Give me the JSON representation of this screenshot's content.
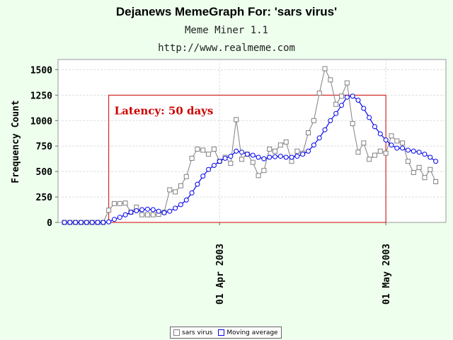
{
  "header": {
    "title": "Dejanews MemeGraph For: 'sars virus'",
    "subtitle": "Meme Miner 1.1",
    "url": "http://www.realmeme.com"
  },
  "chart_data": {
    "type": "line",
    "ylabel": "Frequency Count",
    "ylim": [
      0,
      1600
    ],
    "yticks": [
      0,
      250,
      500,
      750,
      1000,
      1250,
      1500
    ],
    "xticks": [
      {
        "index": 28,
        "label": "01 Apr 2003"
      },
      {
        "index": 58,
        "label": "01 May 2003"
      }
    ],
    "grid": true,
    "legend_position": "bottom-center",
    "annotation": {
      "text": "Latency: 50 days",
      "x_start_index": 8,
      "x_end_index": 58,
      "y_top": 1250,
      "color": "#cc0000"
    },
    "series": [
      {
        "name": "sars virus",
        "color": "#808080",
        "marker": "square",
        "values": [
          0,
          0,
          0,
          0,
          0,
          0,
          0,
          0,
          120,
          185,
          185,
          190,
          100,
          150,
          75,
          75,
          75,
          80,
          100,
          320,
          300,
          360,
          450,
          630,
          720,
          710,
          670,
          720,
          600,
          640,
          580,
          1010,
          620,
          670,
          590,
          460,
          510,
          720,
          700,
          760,
          790,
          600,
          700,
          680,
          880,
          1000,
          1270,
          1510,
          1400,
          1160,
          1240,
          1370,
          970,
          690,
          780,
          620,
          660,
          700,
          680,
          850,
          800,
          780,
          600,
          490,
          540,
          440,
          520,
          400
        ]
      },
      {
        "name": "Moving average",
        "color": "#0000ee",
        "marker": "circle",
        "values": [
          0,
          0,
          0,
          0,
          0,
          0,
          0,
          0,
          5,
          30,
          50,
          75,
          100,
          115,
          125,
          130,
          125,
          110,
          95,
          110,
          140,
          175,
          220,
          290,
          375,
          455,
          520,
          560,
          600,
          630,
          650,
          700,
          690,
          670,
          660,
          640,
          625,
          640,
          645,
          650,
          640,
          640,
          650,
          670,
          700,
          760,
          830,
          910,
          1000,
          1070,
          1150,
          1230,
          1240,
          1200,
          1120,
          1030,
          940,
          870,
          810,
          760,
          730,
          730,
          710,
          700,
          690,
          670,
          640,
          600
        ]
      }
    ]
  }
}
